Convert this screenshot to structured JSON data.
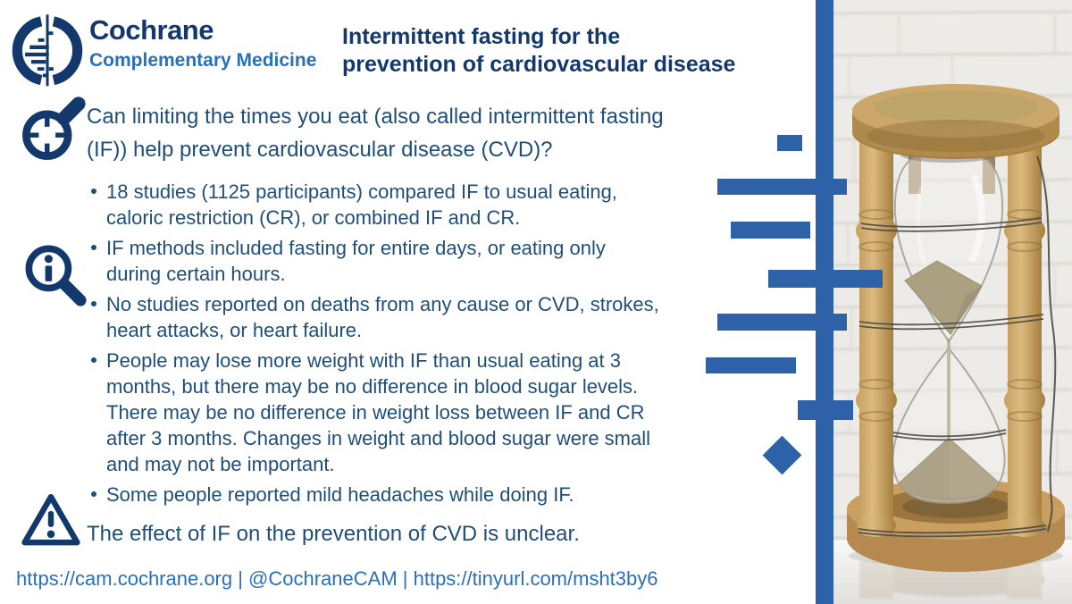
{
  "brand": {
    "name": "Cochrane",
    "subtitle": "Complementary Medicine",
    "logo_icon": "cochrane-forest-plot-logo"
  },
  "title": "Intermittent fasting for the\nprevention of cardiovascular disease",
  "question": "Can limiting the times you eat (also called intermittent fasting\n(IF)) help prevent cardiovascular disease (CVD)?",
  "findings": {
    "bullets": [
      "18 studies (1125 participants) compared IF to usual eating,\ncaloric restriction (CR), or combined IF and CR.",
      "IF methods included fasting for entire days, or eating only\nduring certain hours.",
      "No studies reported on deaths from any cause or CVD, strokes,\nheart attacks, or heart failure.",
      "People may lose more weight with IF than usual eating at 3\nmonths, but there may be no difference in blood sugar levels.\nThere may be no difference in weight loss between IF and CR\nafter 3 months. Changes in weight and blood sugar were small\nand may not be important.",
      "Some people reported mild headaches while doing IF."
    ]
  },
  "conclusion": "The effect of IF on the prevention of CVD is unclear.",
  "footer": {
    "text": "https://cam.cochrane.org | @CochraneCAM | https://tinyurl.com/msht3by6"
  },
  "icons": {
    "question": "scope-target-icon",
    "findings": "info-magnifier-icon",
    "conclusion": "warning-triangle-icon"
  },
  "photo_description": "Wooden hourglass with sand, wrapped in wire, on a white table against a white brick wall",
  "colors": {
    "navy": "#13386c",
    "body_text": "#1f4e79",
    "link_blue": "#2b6fb7",
    "decoration_blue": "#2d62a8"
  }
}
